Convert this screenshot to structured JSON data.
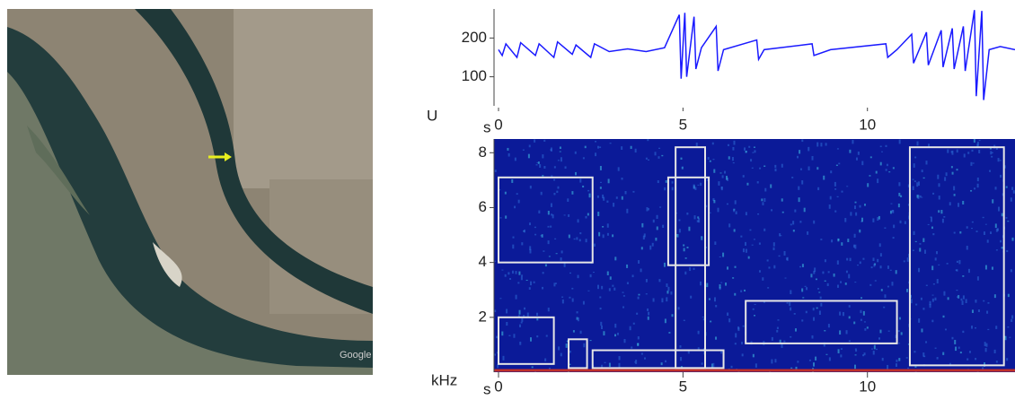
{
  "image": {
    "watermark": "Google Earth"
  },
  "chart_data": [
    {
      "type": "line",
      "xlabel": "s",
      "ylabel": "U",
      "color": "#1a1aff",
      "xlim": [
        0,
        14
      ],
      "ylim": [
        25,
        275
      ],
      "xticks": [
        0,
        5,
        10
      ],
      "yticks": [
        100,
        200
      ],
      "x": [
        0,
        0.1,
        0.2,
        0.5,
        0.6,
        1.0,
        1.1,
        1.5,
        1.6,
        2.0,
        2.1,
        2.5,
        2.6,
        3.0,
        3.5,
        4.0,
        4.5,
        4.9,
        4.95,
        5.05,
        5.1,
        5.3,
        5.35,
        5.5,
        5.9,
        5.95,
        6.1,
        7.0,
        7.05,
        7.2,
        8.5,
        8.55,
        9.0,
        10.5,
        10.55,
        10.8,
        11.2,
        11.25,
        11.6,
        11.65,
        12.0,
        12.05,
        12.3,
        12.35,
        12.6,
        12.65,
        12.9,
        12.95,
        13.1,
        13.15,
        13.3,
        13.6,
        14.0
      ],
      "values": [
        170,
        155,
        185,
        150,
        188,
        155,
        185,
        150,
        190,
        158,
        182,
        150,
        185,
        165,
        172,
        165,
        175,
        260,
        95,
        265,
        100,
        255,
        120,
        175,
        230,
        115,
        170,
        195,
        145,
        170,
        185,
        155,
        170,
        185,
        150,
        170,
        210,
        135,
        215,
        130,
        220,
        125,
        225,
        120,
        230,
        115,
        272,
        50,
        270,
        40,
        170,
        178,
        170
      ]
    },
    {
      "type": "spectrogram",
      "xlabel": "s",
      "ylabel": "kHz",
      "box_color": "#e6e6e6",
      "xlim": [
        0,
        14
      ],
      "ylim": [
        0,
        8.5
      ],
      "xticks": [
        0,
        5,
        10
      ],
      "yticks": [
        2,
        4,
        6,
        8
      ],
      "boxes": [
        {
          "t0": 0,
          "t1": 2.55,
          "f0": 4.0,
          "f1": 7.1
        },
        {
          "t0": 0,
          "t1": 1.5,
          "f0": 0.3,
          "f1": 2.0
        },
        {
          "t0": 1.9,
          "t1": 2.4,
          "f0": 0.15,
          "f1": 1.2
        },
        {
          "t0": 2.55,
          "t1": 6.1,
          "f0": 0.15,
          "f1": 0.8
        },
        {
          "t0": 4.8,
          "t1": 5.6,
          "f0": 0.15,
          "f1": 8.2
        },
        {
          "t0": 4.6,
          "t1": 5.7,
          "f0": 3.9,
          "f1": 7.1
        },
        {
          "t0": 6.7,
          "t1": 10.8,
          "f0": 1.05,
          "f1": 2.6
        },
        {
          "t0": 11.15,
          "t1": 13.7,
          "f0": 0.25,
          "f1": 8.2
        }
      ]
    }
  ]
}
